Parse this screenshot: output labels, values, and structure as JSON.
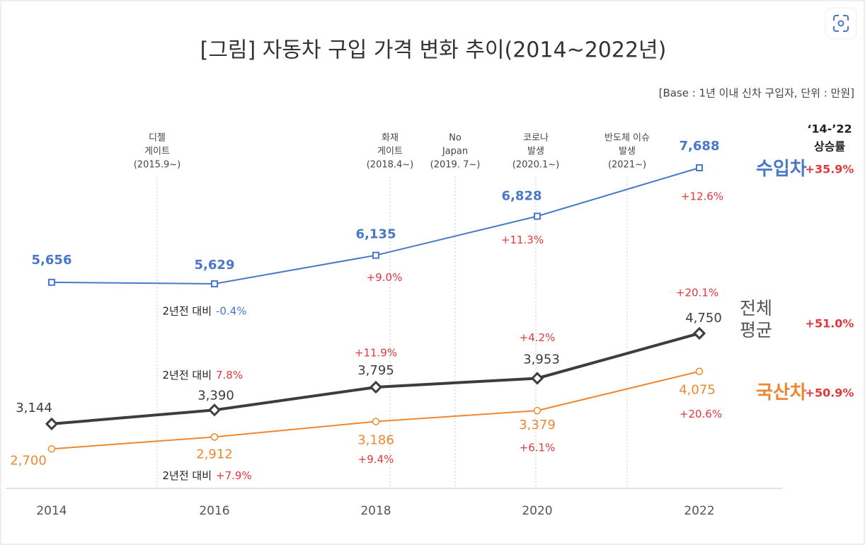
{
  "chart_data": {
    "type": "line",
    "title": "[그림] 자동차 구입 가격 변화 추이(2014~2022년)",
    "subtitle": "[Base : 1년 이내 신차 구입자, 단위 : 만원]",
    "categories": [
      "2014",
      "2016",
      "2018",
      "2020",
      "2022"
    ],
    "ylim": [
      2000,
      9000
    ],
    "change_prefix": "2년전 대비",
    "growth_header": [
      "‘14-’22",
      "상승률"
    ],
    "events": [
      {
        "label": [
          "디젤",
          "게이트",
          "(2015.9~)"
        ]
      },
      {
        "label": [
          "화재",
          "게이트",
          "(2018.4~)"
        ]
      },
      {
        "label": [
          "No",
          "Japan",
          "(2019. 7~)"
        ]
      },
      {
        "label": [
          "코로나",
          "발생",
          "(2020.1~)"
        ]
      },
      {
        "label": [
          "반도체 이슈",
          "발생",
          "(2021~)"
        ]
      }
    ],
    "series": [
      {
        "name": "수입차",
        "color": "#4a78c8",
        "marker": "square",
        "values": [
          5656,
          5629,
          6135,
          6828,
          7688
        ],
        "value_labels": [
          "5,656",
          "5,629",
          "6,135",
          "6,828",
          "7,688"
        ],
        "changes": [
          null,
          "-0.4%",
          "+9.0%",
          "+11.3%",
          "+12.6%"
        ],
        "growth": "+35.9%"
      },
      {
        "name": "전체 평균",
        "color": "#3d3d3d",
        "marker": "diamond",
        "values": [
          3144,
          3390,
          3795,
          3953,
          4750
        ],
        "value_labels": [
          "3,144",
          "3,390",
          "3,795",
          "3,953",
          "4,750"
        ],
        "changes": [
          null,
          "7.8%",
          "+11.9%",
          "+4.2%",
          "+20.1%"
        ],
        "growth": "+51.0%"
      },
      {
        "name": "국산차",
        "color": "#ef8630",
        "marker": "circle",
        "values": [
          2700,
          2912,
          3186,
          3379,
          4075
        ],
        "value_labels": [
          "2,700",
          "2,912",
          "3,186",
          "3,379",
          "4,075"
        ],
        "changes": [
          null,
          "+7.9%",
          "+9.4%",
          "+6.1%",
          "+20.6%"
        ],
        "growth": "+50.9%"
      }
    ]
  }
}
